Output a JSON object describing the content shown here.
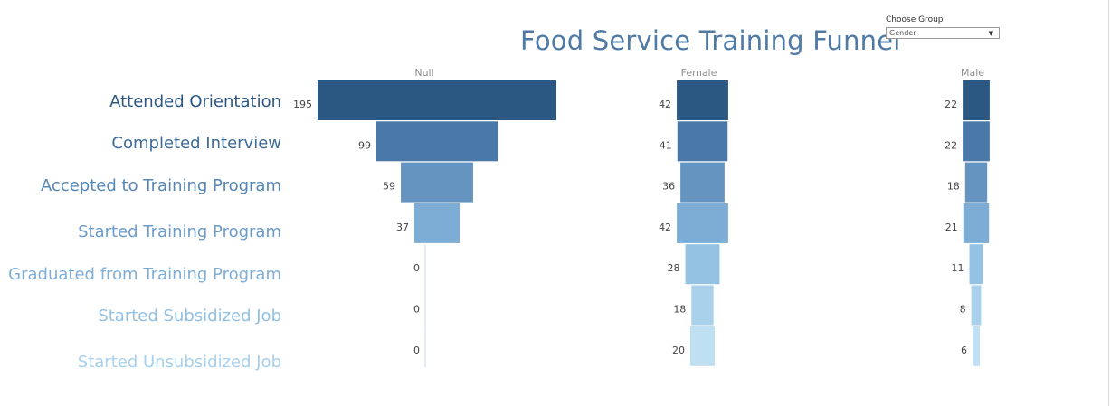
{
  "title": "Food Service Training Funnel",
  "filter": {
    "label": "Choose Group",
    "value": "Gender",
    "arrow_icon": "caret-down-icon"
  },
  "chart_data": {
    "type": "bar",
    "subtype": "funnel",
    "stages": [
      "Attended Orientation",
      "Completed Interview",
      "Accepted to Training Program",
      "Started Training Program",
      "Graduated from Training Program",
      "Started Subsidized Job",
      "Started Unsubsidized Job"
    ],
    "series": [
      {
        "name": "Null",
        "values": [
          195,
          99,
          59,
          37,
          0,
          0,
          0
        ]
      },
      {
        "name": "Female",
        "values": [
          42,
          41,
          36,
          42,
          28,
          18,
          20
        ]
      },
      {
        "name": "Male",
        "values": [
          22,
          22,
          18,
          21,
          11,
          8,
          6
        ]
      }
    ],
    "stage_colors": [
      "#2b5783",
      "#4a78a8",
      "#6594c1",
      "#7dacd4",
      "#93c2e3",
      "#a9d1ec",
      "#bee0f2"
    ],
    "label_colors": [
      "#2b5783",
      "#3d6a98",
      "#5486b6",
      "#6b9bc8",
      "#7faed6",
      "#92c0e3",
      "#a7d0ec"
    ]
  }
}
